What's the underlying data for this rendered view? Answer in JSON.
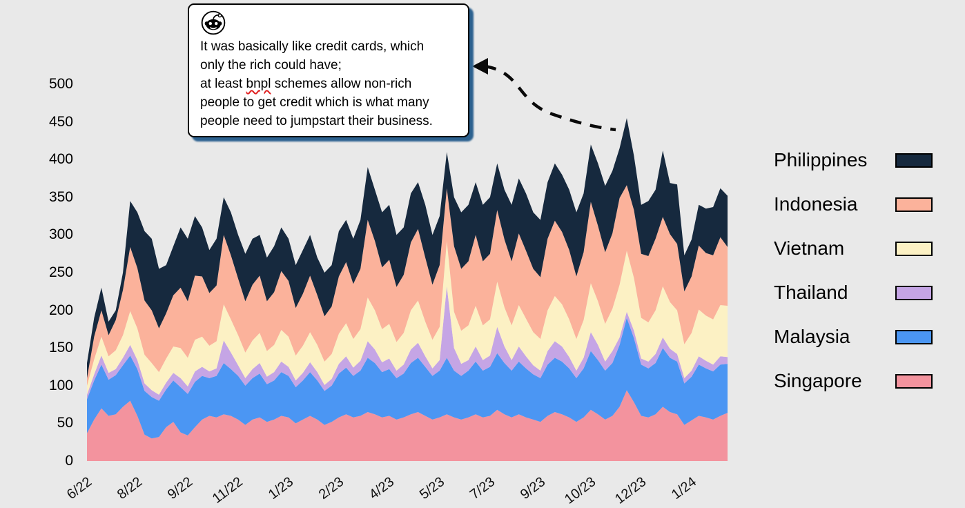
{
  "page": {
    "background": "#e9e9e9"
  },
  "callout": {
    "icon": "reddit-icon",
    "line1": "It was basically like credit cards, which",
    "line2": "only the rich could have;",
    "line3_pre": "at least ",
    "line3_word": "bnpl",
    "line3_post": " schemes allow non-rich",
    "line4": "people to get credit which is what many",
    "line5": "people need to jumpstart their business.",
    "shadow_color": "#2d6290",
    "misspell_underline_color": "#e02020"
  },
  "legend": {
    "position": "right",
    "items": [
      {
        "label": "Philippines",
        "color": "#16293E"
      },
      {
        "label": "Indonesia",
        "color": "#FBB29B"
      },
      {
        "label": "Vietnam",
        "color": "#FCF1C4"
      },
      {
        "label": "Thailand",
        "color": "#C5A5E5"
      },
      {
        "label": "Malaysia",
        "color": "#4B96F3"
      },
      {
        "label": "Singapore",
        "color": "#F3939E"
      }
    ]
  },
  "chart_data": {
    "type": "area",
    "stacked": true,
    "title": "",
    "xlabel": "",
    "ylabel": "",
    "ylim": [
      0,
      500
    ],
    "grid": false,
    "y_ticks": [
      0,
      50,
      100,
      150,
      200,
      250,
      300,
      350,
      400,
      450,
      500
    ],
    "x_tick_labels": [
      "6/22",
      "8/22",
      "9/22",
      "11/22",
      "1/23",
      "2/23",
      "4/23",
      "5/23",
      "7/23",
      "9/23",
      "10/23",
      "12/23",
      "1/24"
    ],
    "x_tick_week_interval": 7,
    "weeks": 90,
    "stack_order_bottom_to_top": [
      "Singapore",
      "Malaysia",
      "Thailand",
      "Vietnam",
      "Indonesia",
      "Philippines"
    ],
    "series": [
      {
        "name": "Singapore",
        "color": "#F3939E",
        "values": [
          37,
          55,
          70,
          60,
          62,
          72,
          80,
          60,
          35,
          30,
          32,
          45,
          52,
          38,
          34,
          45,
          55,
          60,
          58,
          62,
          60,
          55,
          48,
          55,
          58,
          52,
          55,
          60,
          58,
          50,
          55,
          60,
          55,
          48,
          52,
          58,
          62,
          58,
          60,
          65,
          62,
          58,
          60,
          55,
          58,
          62,
          65,
          60,
          55,
          58,
          62,
          58,
          55,
          58,
          62,
          58,
          60,
          68,
          62,
          58,
          62,
          58,
          55,
          52,
          60,
          65,
          62,
          58,
          52,
          58,
          68,
          62,
          55,
          60,
          72,
          94,
          78,
          60,
          58,
          62,
          72,
          65,
          62,
          48,
          54,
          60,
          58,
          55,
          60,
          64
        ]
      },
      {
        "name": "Malaysia",
        "color": "#4B96F3",
        "values": [
          45,
          52,
          58,
          48,
          52,
          55,
          60,
          62,
          58,
          55,
          48,
          50,
          55,
          60,
          55,
          60,
          58,
          50,
          55,
          68,
          62,
          58,
          52,
          55,
          58,
          50,
          52,
          58,
          55,
          48,
          52,
          58,
          52,
          45,
          48,
          58,
          62,
          55,
          60,
          72,
          68,
          60,
          62,
          55,
          58,
          68,
          72,
          65,
          58,
          62,
          75,
          62,
          58,
          62,
          70,
          62,
          65,
          75,
          68,
          62,
          70,
          65,
          60,
          58,
          68,
          72,
          70,
          65,
          58,
          65,
          78,
          72,
          65,
          70,
          82,
          96,
          85,
          68,
          65,
          68,
          78,
          72,
          70,
          55,
          58,
          68,
          65,
          64,
          68,
          65
        ]
      },
      {
        "name": "Thailand",
        "color": "#C5A5E5",
        "values": [
          6,
          8,
          12,
          9,
          8,
          10,
          14,
          12,
          10,
          9,
          8,
          9,
          10,
          12,
          10,
          14,
          12,
          9,
          10,
          30,
          22,
          14,
          10,
          12,
          14,
          10,
          11,
          14,
          12,
          9,
          10,
          13,
          11,
          8,
          9,
          13,
          15,
          11,
          13,
          22,
          18,
          13,
          14,
          10,
          12,
          18,
          20,
          14,
          10,
          14,
          95,
          30,
          16,
          14,
          20,
          14,
          15,
          35,
          22,
          14,
          20,
          16,
          12,
          10,
          18,
          22,
          20,
          15,
          10,
          14,
          25,
          20,
          12,
          16,
          10,
          8,
          10,
          8,
          9,
          12,
          14,
          12,
          10,
          7,
          8,
          11,
          10,
          9,
          11,
          9
        ]
      },
      {
        "name": "Vietnam",
        "color": "#FCF1C4",
        "values": [
          12,
          20,
          25,
          22,
          25,
          30,
          45,
          42,
          38,
          36,
          30,
          32,
          35,
          40,
          38,
          42,
          40,
          34,
          36,
          48,
          44,
          40,
          34,
          38,
          40,
          34,
          36,
          42,
          40,
          33,
          36,
          40,
          36,
          31,
          33,
          40,
          44,
          38,
          42,
          58,
          52,
          44,
          46,
          38,
          42,
          52,
          56,
          46,
          38,
          44,
          60,
          48,
          44,
          46,
          54,
          46,
          48,
          60,
          52,
          46,
          55,
          50,
          44,
          42,
          54,
          60,
          56,
          50,
          42,
          50,
          65,
          58,
          50,
          56,
          70,
          81,
          70,
          54,
          52,
          58,
          68,
          62,
          58,
          45,
          50,
          62,
          60,
          60,
          68,
          68
        ]
      },
      {
        "name": "Indonesia",
        "color": "#FBB29B",
        "values": [
          10,
          30,
          35,
          28,
          40,
          60,
          85,
          80,
          72,
          70,
          58,
          60,
          68,
          80,
          75,
          85,
          80,
          70,
          74,
          92,
          85,
          75,
          68,
          74,
          76,
          66,
          70,
          78,
          74,
          63,
          69,
          75,
          66,
          60,
          63,
          76,
          81,
          73,
          80,
          103,
          92,
          82,
          85,
          73,
          77,
          90,
          95,
          85,
          73,
          82,
          70,
          87,
          82,
          85,
          94,
          85,
          87,
          95,
          90,
          85,
          95,
          90,
          84,
          82,
          95,
          100,
          96,
          92,
          83,
          90,
          108,
          100,
          95,
          100,
          115,
          87,
          90,
          85,
          88,
          95,
          92,
          90,
          88,
          70,
          75,
          85,
          83,
          85,
          90,
          78
        ]
      },
      {
        "name": "Philippines",
        "color": "#16293E",
        "values": [
          20,
          25,
          30,
          18,
          13,
          23,
          61,
          74,
          92,
          95,
          79,
          64,
          65,
          80,
          83,
          79,
          65,
          57,
          62,
          50,
          57,
          58,
          63,
          61,
          54,
          58,
          61,
          58,
          56,
          57,
          58,
          54,
          50,
          58,
          55,
          60,
          56,
          60,
          65,
          70,
          68,
          73,
          73,
          69,
          63,
          65,
          62,
          70,
          66,
          65,
          48,
          65,
          75,
          75,
          70,
          75,
          75,
          62,
          66,
          75,
          73,
          76,
          75,
          76,
          75,
          76,
          76,
          80,
          85,
          78,
          76,
          83,
          88,
          83,
          66,
          89,
          72,
          65,
          73,
          65,
          88,
          68,
          79,
          48,
          49,
          54,
          59,
          64,
          65,
          68
        ]
      }
    ],
    "legend_position": "right",
    "annotation": {
      "style": "dashed-arrow",
      "points_at": "tallest-peak"
    }
  }
}
